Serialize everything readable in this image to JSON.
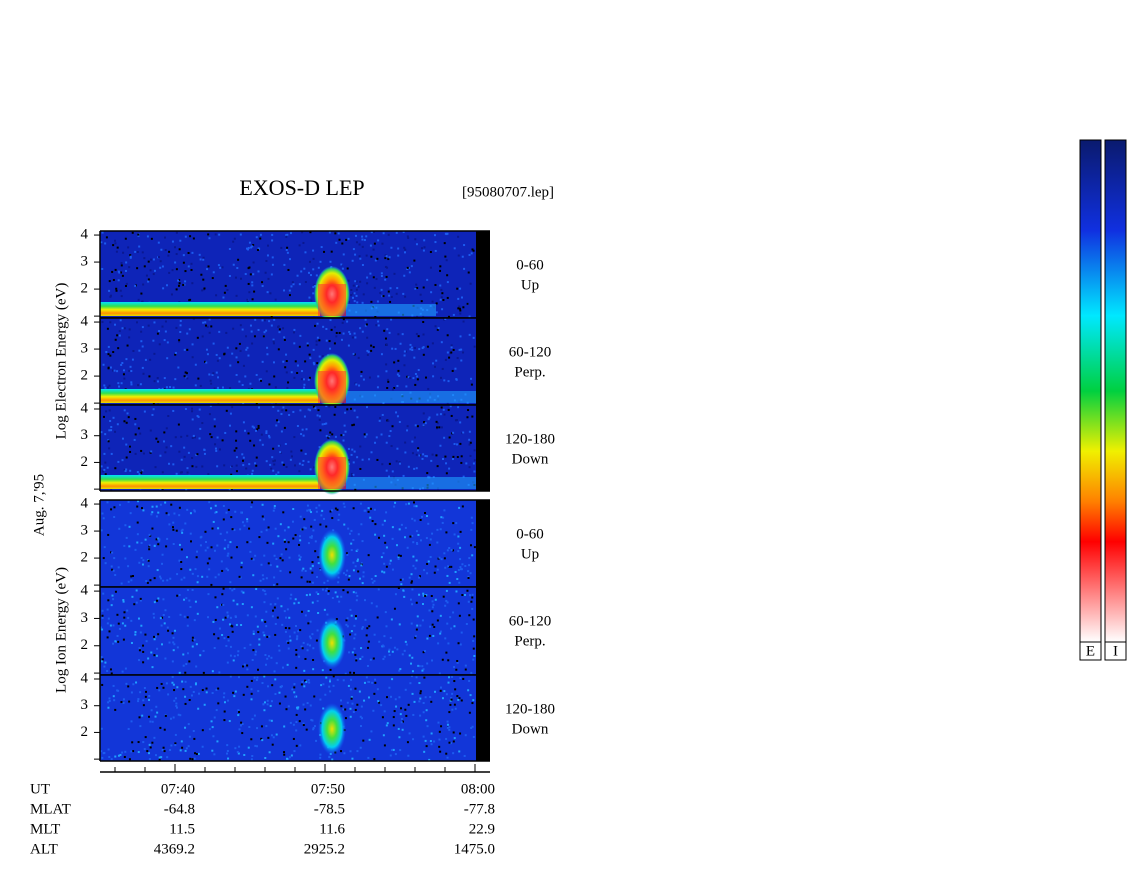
{
  "chart_data": {
    "type": "spectrogram",
    "title": "EXOS-D LEP",
    "file": "[95080707.lep]",
    "date": "Aug. 7,'95",
    "groups": [
      {
        "ylabel": "Log  Electron  Energy (eV)"
      },
      {
        "ylabel": "Log  Ion  Energy (eV)"
      }
    ],
    "panels": [
      {
        "label": [
          "0-60",
          "Up"
        ]
      },
      {
        "label": [
          "60-120",
          "Perp."
        ]
      },
      {
        "label": [
          "120-180",
          "Down"
        ]
      },
      {
        "label": [
          "0-60",
          "Up"
        ]
      },
      {
        "label": [
          "60-120",
          "Perp."
        ]
      },
      {
        "label": [
          "120-180",
          "Down"
        ]
      }
    ],
    "ylim": [
      0.93,
      4.15
    ],
    "yticks": [
      2,
      3,
      4
    ],
    "yminor": [
      1
    ],
    "xlim": [
      35,
      61
    ],
    "xticks": [
      {
        "value": 40,
        "label": "07:40"
      },
      {
        "value": 50,
        "label": "07:50"
      },
      {
        "value": 60,
        "label": "08:00"
      }
    ],
    "xminor": [
      36,
      38,
      42,
      44,
      46,
      48,
      52,
      54,
      56,
      58
    ],
    "colorbars": [
      "E",
      "I"
    ],
    "orbit": {
      "ut_label": "UT",
      "rows": [
        {
          "label": "MLAT",
          "values": [
            "-64.8",
            "-78.5",
            "-77.8"
          ]
        },
        {
          "label": "MLT",
          "values": [
            "11.5",
            "11.6",
            "22.9"
          ]
        },
        {
          "label": "ALT",
          "values": [
            "4369.2",
            "2925.2",
            "1475.0"
          ]
        }
      ]
    }
  }
}
